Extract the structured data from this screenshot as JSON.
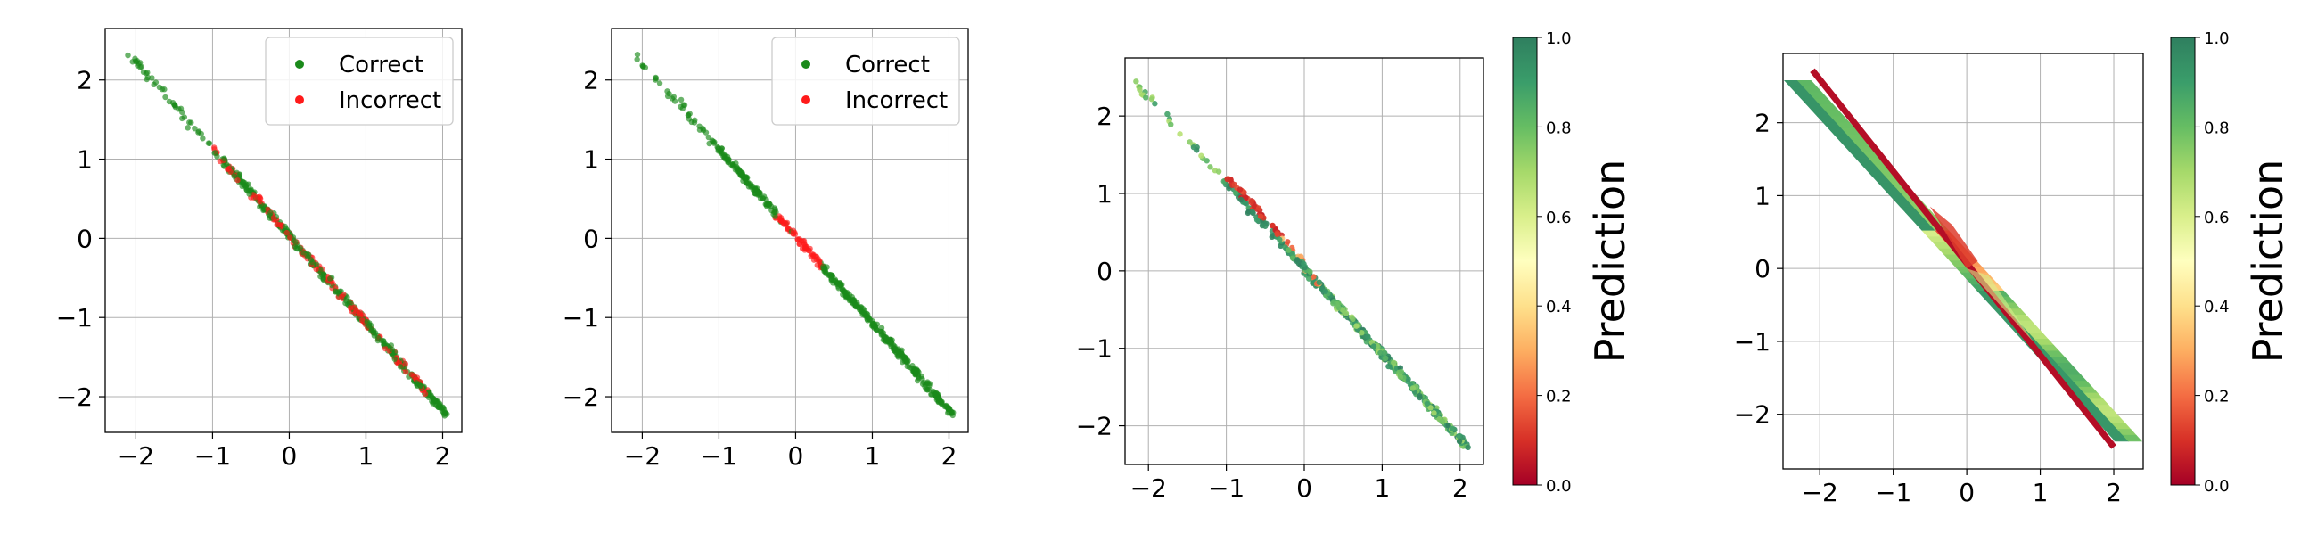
{
  "chart_data": [
    {
      "type": "scatter",
      "xlim": [
        -2.4,
        2.25
      ],
      "ylim": [
        -2.45,
        2.65
      ],
      "xticks": [
        -2,
        -1,
        0,
        1,
        2
      ],
      "yticks": [
        -2,
        -1,
        0,
        1,
        2
      ],
      "grid": true,
      "legend_position": "upper right",
      "legend": [
        "Correct",
        "Incorrect"
      ],
      "series": [
        {
          "name": "Correct",
          "color": "#1a8a1a",
          "line": {
            "x0": -2.1,
            "x1": 2.05
          },
          "incorrect_segments": []
        },
        {
          "name": "Incorrect",
          "color": "#ff1a1a",
          "incorrect_segments": [
            [
              -1.05,
              -0.65
            ],
            [
              -0.5,
              1.8
            ]
          ]
        }
      ]
    },
    {
      "type": "scatter",
      "xlim": [
        -2.4,
        2.25
      ],
      "ylim": [
        -2.45,
        2.65
      ],
      "xticks": [
        -2,
        -1,
        0,
        1,
        2
      ],
      "yticks": [
        -2,
        -1,
        0,
        1,
        2
      ],
      "grid": true,
      "legend_position": "upper right",
      "legend": [
        "Correct",
        "Incorrect"
      ],
      "series": [
        {
          "name": "Correct",
          "color": "#1a8a1a",
          "line": {
            "x0": -2.1,
            "x1": 2.05
          },
          "incorrect_segments": []
        },
        {
          "name": "Incorrect",
          "color": "#ff1a1a",
          "incorrect_segments": [
            [
              -0.25,
              0.35
            ]
          ]
        }
      ]
    },
    {
      "type": "scatter",
      "xlim": [
        -2.3,
        2.3
      ],
      "ylim": [
        -2.5,
        2.75
      ],
      "xticks": [
        -2,
        -1,
        0,
        1,
        2
      ],
      "yticks": [
        -2,
        -1,
        0,
        1,
        2
      ],
      "grid": true,
      "colorbar": {
        "label": "Prediction",
        "min": 0.0,
        "max": 1.0,
        "ticks": [
          "0.0",
          "0.2",
          "0.4",
          "0.6",
          "0.8",
          "1.0"
        ],
        "colormap": "RdYlGn"
      }
    },
    {
      "type": "heatmap",
      "xlim": [
        -2.5,
        2.4
      ],
      "ylim": [
        -2.75,
        2.95
      ],
      "xticks": [
        -2,
        -1,
        0,
        1,
        2
      ],
      "yticks": [
        -2,
        -1,
        0,
        1,
        2
      ],
      "grid": true,
      "colorbar": {
        "label": "Prediction",
        "min": 0.0,
        "max": 1.0,
        "ticks": [
          "0.0",
          "0.2",
          "0.4",
          "0.6",
          "0.8",
          "1.0"
        ],
        "colormap": "RdYlGn"
      }
    }
  ]
}
